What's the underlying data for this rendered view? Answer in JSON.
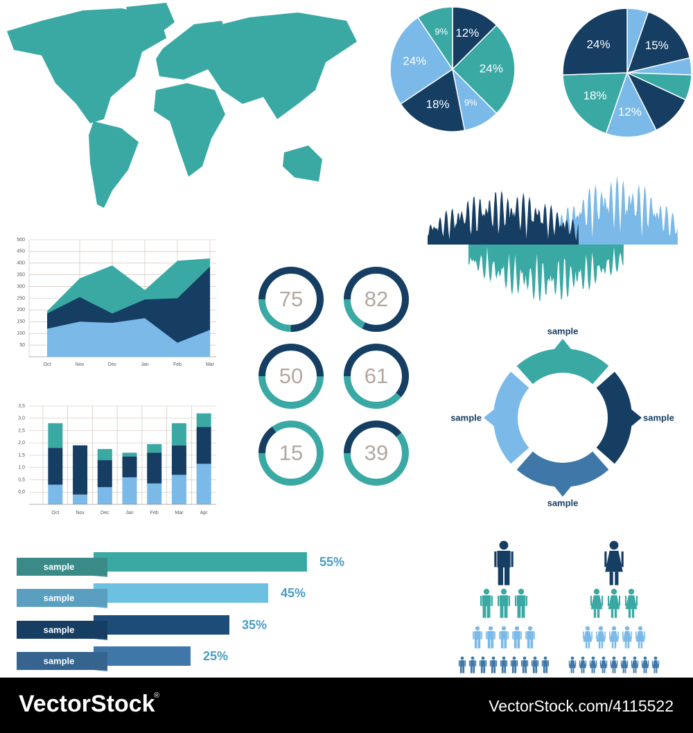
{
  "chart_data": [
    {
      "type": "pie",
      "values": [
        12,
        24,
        9,
        18,
        24,
        9
      ],
      "value_labels": [
        "12%",
        "24%",
        "9%",
        "18%",
        "24%",
        "9%"
      ],
      "colors": [
        "#163e63",
        "#3aa9a4",
        "#7ab9e8",
        "#163e63",
        "#7ab9e8",
        "#3aa9a4"
      ]
    },
    {
      "type": "pie",
      "values": [
        5,
        15,
        4,
        6,
        10,
        12,
        18,
        24
      ],
      "value_labels": [
        null,
        "15%",
        null,
        null,
        null,
        "12%",
        "18%",
        "24%"
      ],
      "colors": [
        "#7ab9e8",
        "#163e63",
        "#7ab9e8",
        "#3aa9a4",
        "#163e63",
        "#7ab9e8",
        "#3aa9a4",
        "#163e63"
      ]
    },
    {
      "type": "area",
      "categories": [
        "Oct",
        "Nov",
        "Dec",
        "Jan",
        "Feb",
        "Mar"
      ],
      "series": [
        {
          "color": "#3aa9a4",
          "values": [
            195,
            335,
            390,
            285,
            410,
            420
          ]
        },
        {
          "color": "#163e63",
          "values": [
            185,
            255,
            185,
            245,
            250,
            385
          ]
        },
        {
          "color": "#7ab9e8",
          "values": [
            120,
            150,
            145,
            165,
            60,
            115
          ]
        }
      ],
      "ylim": [
        0,
        500
      ],
      "yticks": [
        50,
        100,
        150,
        200,
        250,
        300,
        350,
        400,
        450,
        500
      ],
      "grid": true
    },
    {
      "type": "stacked_bar",
      "categories": [
        "Oct",
        "Nov",
        "Dec",
        "Jan",
        "Feb",
        "Mar",
        "Apr"
      ],
      "series": [
        {
          "color": "#7ab9e8",
          "values": [
            0.8,
            0.4,
            0.7,
            1.1,
            0.85,
            1.2,
            1.65
          ]
        },
        {
          "color": "#163e63",
          "values": [
            1.5,
            2.0,
            1.1,
            0.85,
            1.25,
            1.2,
            1.5
          ]
        },
        {
          "color": "#3aa9a4",
          "values": [
            1.0,
            0,
            0.45,
            0.15,
            0.35,
            0.9,
            0.55
          ]
        }
      ],
      "ylim": [
        -0.5,
        3.5
      ],
      "yticks": [
        {
          "value": 0,
          "label": "0,0"
        },
        {
          "value": 0.5,
          "label": "0,5"
        },
        {
          "value": 1,
          "label": "1,0"
        },
        {
          "value": 1.5,
          "label": "1,5"
        },
        {
          "value": 2,
          "label": "2,0"
        },
        {
          "value": 2.5,
          "label": "2,5"
        },
        {
          "value": 3,
          "label": "3,0"
        },
        {
          "value": 3.5,
          "label": "3,5"
        }
      ],
      "grid": true
    },
    {
      "type": "gauge",
      "values": [
        75,
        82,
        50,
        61,
        15,
        39
      ],
      "ylim": [
        0,
        100
      ],
      "colors": [
        "#163e63",
        "#3aa9a4"
      ]
    },
    {
      "type": "hbar",
      "categories": [
        "sample",
        "sample",
        "sample",
        "sample"
      ],
      "values": [
        55,
        45,
        35,
        25
      ],
      "value_labels": [
        "55%",
        "45%",
        "35%",
        "25%"
      ],
      "colors": [
        "#3aa9a4",
        "#6cc0e0",
        "#1b4d78",
        "#3f78a8"
      ],
      "xlim": [
        0,
        55
      ]
    }
  ],
  "cycle_labels": [
    "sample",
    "sample",
    "sample",
    "sample"
  ],
  "footer": {
    "brand": "VectorStock",
    "mark": "®",
    "url": "VectorStock.com/4115522"
  }
}
